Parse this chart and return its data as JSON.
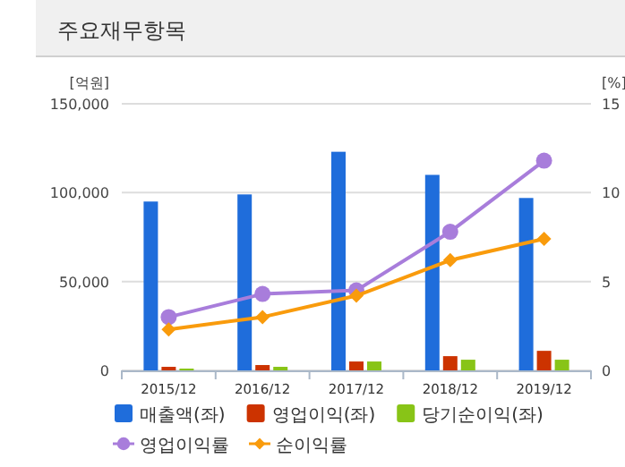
{
  "chart_data": {
    "type": "bar",
    "title": "주요재무항목",
    "ylabel": "[억원]",
    "y2label": "[%]",
    "categories": [
      "2015/12",
      "2016/12",
      "2017/12",
      "2018/12",
      "2019/12"
    ],
    "ylim": [
      0,
      150000
    ],
    "yticks": [
      {
        "value": 0,
        "label": "0"
      },
      {
        "value": 50000,
        "label": "50,000"
      },
      {
        "value": 100000,
        "label": "100,000"
      },
      {
        "value": 150000,
        "label": "150,000"
      }
    ],
    "y2lim": [
      0,
      15
    ],
    "y2ticks": [
      0,
      5,
      10,
      15
    ],
    "grid": "y",
    "legend": "bottom",
    "series": [
      {
        "name": "매출액(좌)",
        "color": "#1f6ddb",
        "values": [
          95000,
          99000,
          123000,
          110000,
          97000
        ]
      },
      {
        "name": "영업이익(좌)",
        "color": "#cc3300",
        "values": [
          2000,
          3000,
          5000,
          8000,
          11000
        ]
      },
      {
        "name": "당기순이익(좌)",
        "color": "#88c417",
        "values": [
          1000,
          2000,
          5000,
          6000,
          6000
        ]
      },
      {
        "name": "영업이익률",
        "type": "line",
        "axis": "y2",
        "marker": "circle",
        "color": "#a87ddb",
        "values": [
          3.0,
          4.3,
          4.5,
          7.8,
          11.8
        ]
      },
      {
        "name": "순이익률",
        "type": "line",
        "axis": "y2",
        "marker": "diamond",
        "color": "#f99b0c",
        "values": [
          2.3,
          3.0,
          4.2,
          6.2,
          7.4
        ]
      }
    ]
  }
}
